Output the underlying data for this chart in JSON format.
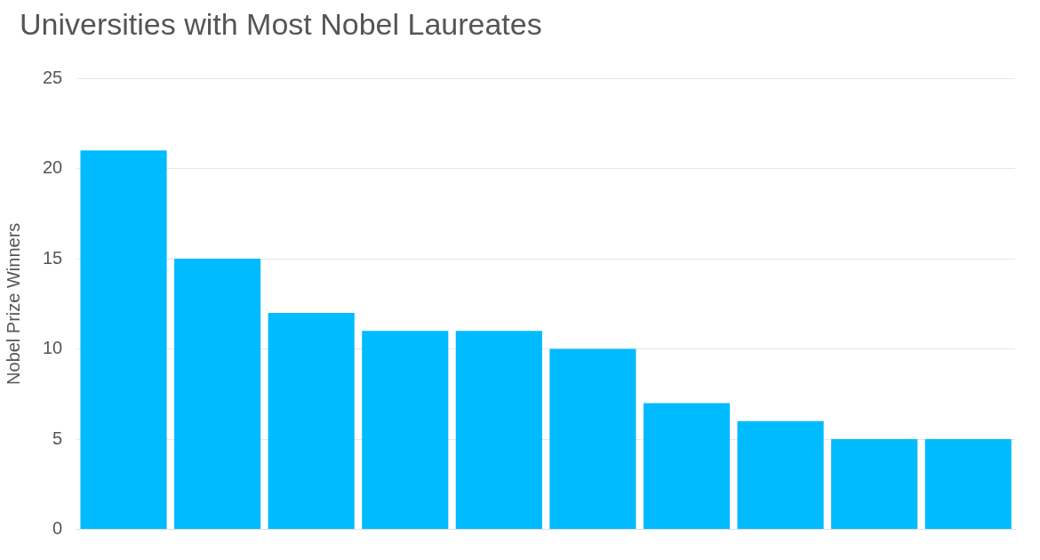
{
  "chart_data": {
    "type": "bar",
    "title": "Universities with Most Nobel Laureates",
    "ylabel": "Nobel Prize Winners",
    "categories": [
      null,
      null,
      null,
      null,
      null,
      null,
      null,
      null,
      null,
      null
    ],
    "values": [
      21,
      15,
      12,
      11,
      11,
      10,
      7,
      6,
      5,
      5
    ],
    "color": "#00bbff",
    "ylim": [
      0,
      25
    ],
    "yticks": [
      0,
      5,
      10,
      15,
      20,
      25
    ],
    "grid": "y",
    "legend": false
  }
}
